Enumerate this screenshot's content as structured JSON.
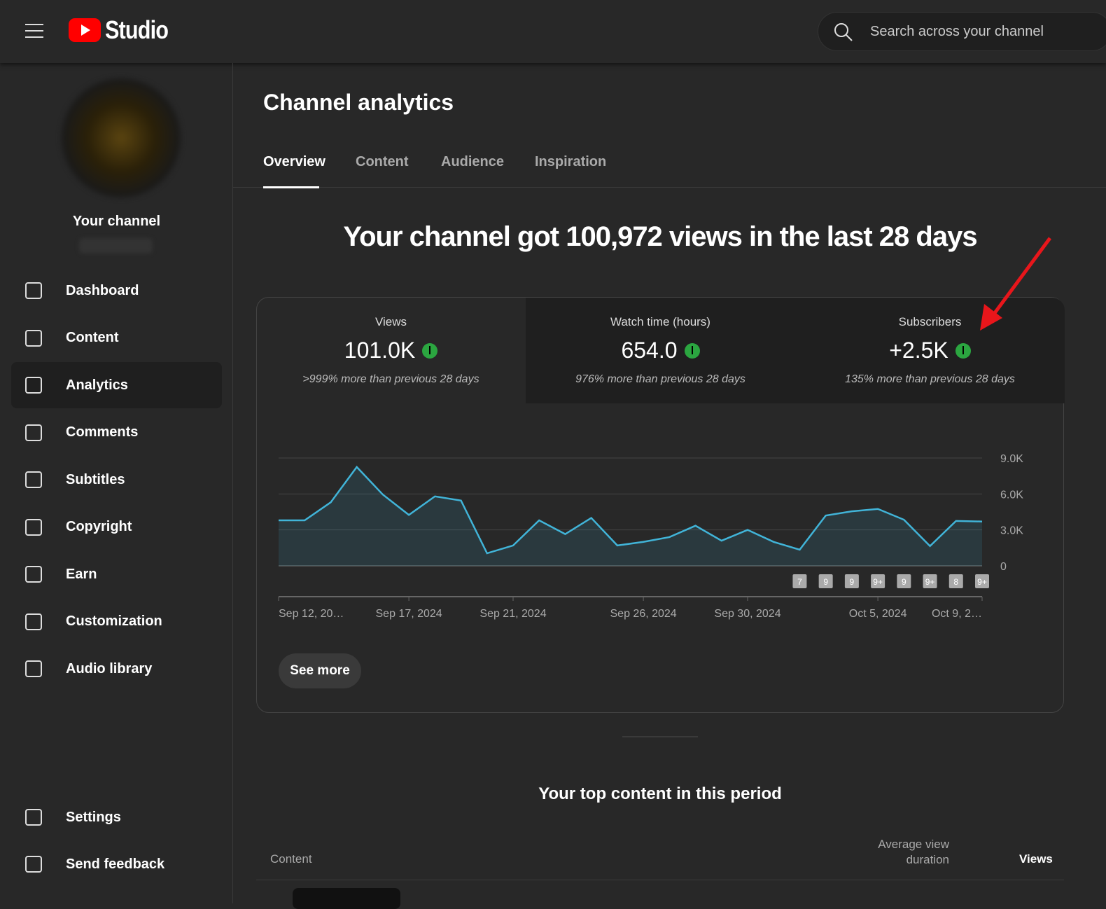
{
  "header": {
    "logo": "Studio",
    "search_placeholder": "Search across your channel"
  },
  "sidebar": {
    "channel": "Your channel",
    "nav": [
      "Dashboard",
      "Content",
      "Analytics",
      "Comments",
      "Subtitles",
      "Copyright",
      "Earn",
      "Customization",
      "Audio library"
    ],
    "footer_nav": [
      "Settings",
      "Send feedback"
    ]
  },
  "page": {
    "title": "Channel analytics",
    "tabs": [
      "Overview",
      "Content",
      "Audience",
      "Inspiration"
    ],
    "headline": "Your channel got 100,972 views in the last 28 days"
  },
  "metrics": [
    {
      "label": "Views",
      "value": "101.0K",
      "change": ">999% more than previous 28 days"
    },
    {
      "label": "Watch time (hours)",
      "value": "654.0",
      "change": "976% more than previous 28 days"
    },
    {
      "label": "Subscribers",
      "value": "+2.5K",
      "change": "135% more than previous 28 days"
    }
  ],
  "chart_data": {
    "type": "area",
    "color": "#41b4d8",
    "grid": true,
    "categories": [
      "Sep 12, 20…",
      null,
      null,
      null,
      null,
      "Sep 17, 2024",
      null,
      null,
      null,
      "Sep 21, 2024",
      null,
      null,
      null,
      null,
      "Sep 26, 2024",
      null,
      null,
      null,
      "Sep 30, 2024",
      null,
      null,
      null,
      null,
      "Oct 5, 2024",
      null,
      null,
      null,
      "Oct 9, 2…"
    ],
    "values": [
      3800,
      3800,
      5300,
      8250,
      5950,
      4250,
      5800,
      5450,
      1050,
      1700,
      3800,
      2650,
      4000,
      1700,
      2000,
      2400,
      3350,
      2100,
      3000,
      2000,
      1350,
      4200,
      4550,
      4750,
      3850,
      1650,
      3750,
      3700
    ],
    "ylim": [
      0,
      9000
    ],
    "yticks": [
      0,
      {
        "value": 3000,
        "label": "3.0K"
      },
      {
        "value": 6000,
        "label": "6.0K"
      },
      {
        "value": 9000,
        "label": "9.0K"
      }
    ],
    "badges": [
      "7",
      "9",
      "9",
      "9+",
      "9",
      "9+",
      "8",
      "9+"
    ]
  },
  "see_more": "See more",
  "top_content": {
    "title": "Your top content in this period",
    "columns": [
      "Content",
      "Average view duration",
      "Views"
    ]
  }
}
